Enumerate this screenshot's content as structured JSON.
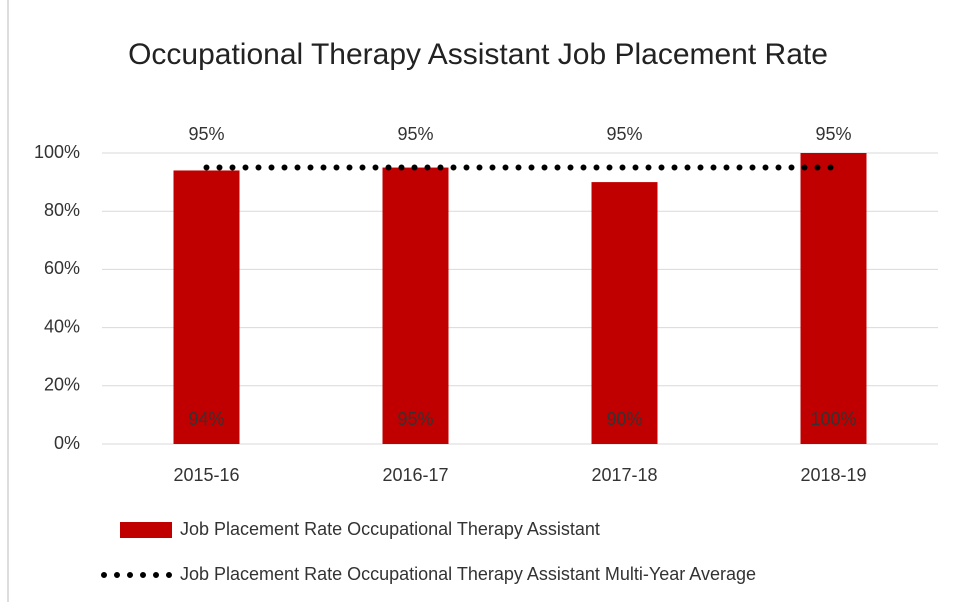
{
  "chart_data": {
    "type": "bar",
    "title": "Occupational Therapy Assistant Job Placement Rate",
    "categories": [
      "2015-16",
      "2016-17",
      "2017-18",
      "2018-19"
    ],
    "series": [
      {
        "name": "Job Placement Rate Occupational Therapy Assistant",
        "type": "bar",
        "color": "#c00000",
        "values": [
          94,
          95,
          90,
          100
        ],
        "value_labels": [
          "94%",
          "95%",
          "90%",
          "100%"
        ]
      },
      {
        "name": "Job Placement Rate Occupational Therapy Assistant Multi-Year Average",
        "type": "line",
        "color": "#000000",
        "values": [
          95,
          95,
          95,
          95
        ],
        "value_labels": [
          "95%",
          "95%",
          "95%",
          "95%"
        ]
      }
    ],
    "ylim": [
      0,
      100
    ],
    "yticks": [
      {
        "value": 0,
        "label": "0%"
      },
      {
        "value": 20,
        "label": "20%"
      },
      {
        "value": 40,
        "label": "40%"
      },
      {
        "value": 60,
        "label": "60%"
      },
      {
        "value": 80,
        "label": "80%"
      },
      {
        "value": 100,
        "label": "100%"
      }
    ],
    "grid": true,
    "legend": "bottom"
  }
}
